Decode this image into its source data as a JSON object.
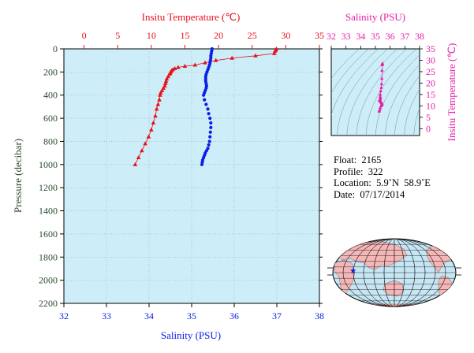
{
  "colors": {
    "temperature": "#e8101a",
    "salinity": "#0a1ee6",
    "ts": "#e81ea8",
    "plot_bg": "#cdeef8",
    "pressure_axis": "#2a4a2a"
  },
  "chart_data": [
    {
      "type": "scatter",
      "title": "",
      "ylabel": "Pressure (decibar)",
      "ylim": [
        2200,
        0
      ],
      "y_ticks": [
        0,
        200,
        400,
        600,
        800,
        1000,
        1200,
        1400,
        1600,
        1800,
        2000,
        2200
      ],
      "x_top": {
        "label": "Insitu Temperature (℃)",
        "range": [
          -3,
          35
        ],
        "ticks": [
          0,
          5,
          10,
          15,
          20,
          25,
          30,
          35
        ]
      },
      "x_bottom": {
        "label": "Salinity (PSU)",
        "range": [
          32,
          38
        ],
        "ticks": [
          32,
          33,
          34,
          35,
          36,
          37,
          38
        ]
      },
      "grid": true,
      "series": [
        {
          "axis": "top",
          "marker": "triangle",
          "x": [
            28.6,
            28.5,
            28.4,
            28.3,
            25.5,
            22.0,
            19.6,
            18.0,
            16.5,
            15.0,
            14.0,
            13.5,
            13.2,
            13.0,
            12.9,
            12.8,
            12.7,
            12.5,
            12.3,
            12.2,
            12.1,
            12.0,
            11.8,
            11.6,
            11.4,
            11.3,
            11.2,
            11.0,
            10.8,
            10.6,
            10.3,
            10.0,
            9.6,
            9.1,
            8.6,
            8.1,
            7.6
          ],
          "y": [
            0,
            10,
            20,
            40,
            60,
            80,
            100,
            120,
            140,
            150,
            160,
            170,
            180,
            190,
            200,
            210,
            220,
            240,
            260,
            280,
            300,
            320,
            340,
            360,
            380,
            400,
            440,
            480,
            520,
            580,
            640,
            700,
            760,
            820,
            880,
            940,
            1000
          ]
        },
        {
          "axis": "bottom",
          "marker": "circle",
          "x": [
            35.48,
            35.47,
            35.46,
            35.45,
            35.45,
            35.44,
            35.43,
            35.42,
            35.4,
            35.38,
            35.36,
            35.34,
            35.33,
            35.33,
            35.33,
            35.34,
            35.35,
            35.34,
            35.32,
            35.3,
            35.28,
            35.3,
            35.34,
            35.38,
            35.4,
            35.43,
            35.45,
            35.45,
            35.44,
            35.43,
            35.42,
            35.4,
            35.38,
            35.35,
            35.32,
            35.3,
            35.28,
            35.26,
            35.25,
            35.24
          ],
          "y": [
            0,
            20,
            40,
            60,
            80,
            100,
            120,
            140,
            160,
            180,
            200,
            220,
            240,
            260,
            280,
            300,
            320,
            340,
            360,
            380,
            400,
            440,
            480,
            520,
            560,
            600,
            640,
            680,
            720,
            760,
            800,
            830,
            860,
            880,
            900,
            920,
            940,
            960,
            980,
            1000
          ]
        }
      ]
    },
    {
      "type": "scatter",
      "title": "",
      "xlabel": "Salinity (PSU)",
      "ylabel": "Insitu Temperature (℃)",
      "xlim": [
        32,
        38
      ],
      "ylim": [
        -3,
        35
      ],
      "x_ticks": [
        32,
        33,
        34,
        35,
        36,
        37,
        38
      ],
      "y_ticks": [
        0,
        5,
        10,
        15,
        20,
        25,
        30,
        35
      ],
      "series": [
        {
          "marker": "triangle",
          "x": [
            35.48,
            35.47,
            35.46,
            35.45,
            35.44,
            35.42,
            35.4,
            35.36,
            35.33,
            35.33,
            35.34,
            35.32,
            35.3,
            35.28,
            35.3,
            35.34,
            35.38,
            35.42,
            35.45,
            35.44,
            35.42,
            35.38,
            35.32,
            35.28,
            35.25
          ],
          "y": [
            28.6,
            28.4,
            28.0,
            25.5,
            22.0,
            19.6,
            18.0,
            16.5,
            15.0,
            14.0,
            13.5,
            13.0,
            12.8,
            12.5,
            12.2,
            12.0,
            11.6,
            11.3,
            11.0,
            10.6,
            10.3,
            10.0,
            9.1,
            8.1,
            7.6
          ]
        }
      ]
    }
  ],
  "float_info": {
    "float": "Float:  2165",
    "profile": "Profile:  322",
    "location": "Location:  5.9˚N  58.9˚E",
    "date": "Date:  07/17/2014"
  },
  "map": {
    "marker_longitude": 58.9,
    "marker_latitude": 5.9
  }
}
